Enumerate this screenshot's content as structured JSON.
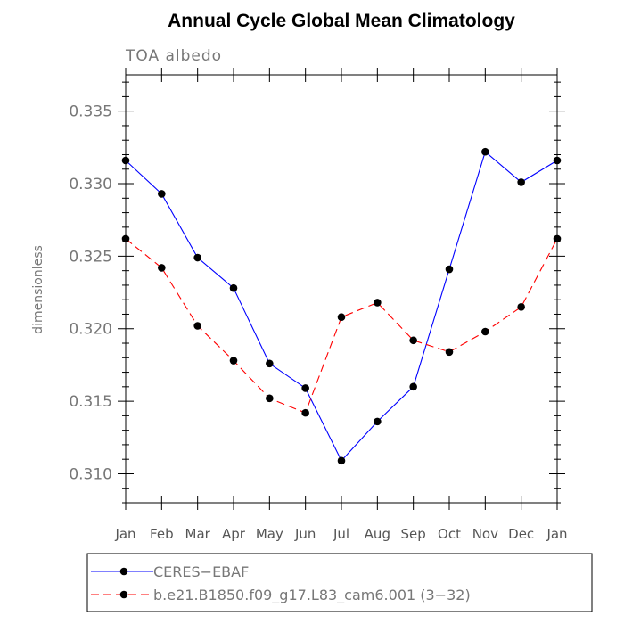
{
  "chart_data": {
    "type": "line",
    "title": "Annual Cycle Global Mean Climatology",
    "subtitle": "TOA albedo",
    "xlabel": "",
    "ylabel": "dimensionless",
    "categories": [
      "Jan",
      "Feb",
      "Mar",
      "Apr",
      "May",
      "Jun",
      "Jul",
      "Aug",
      "Sep",
      "Oct",
      "Nov",
      "Dec",
      "Jan"
    ],
    "ylim": [
      0.308,
      0.3375
    ],
    "yticks": [
      0.31,
      0.315,
      0.32,
      0.325,
      0.33,
      0.335
    ],
    "ytick_labels": [
      "0.310",
      "0.315",
      "0.320",
      "0.325",
      "0.330",
      "0.335"
    ],
    "minor_tick_step": 0.001,
    "legend_position": "bottom",
    "series": [
      {
        "name": "CERES−EBAF",
        "color": "#0000ff",
        "style": "solid",
        "values": [
          0.3316,
          0.3293,
          0.3249,
          0.3228,
          0.3176,
          0.3159,
          0.3109,
          0.3136,
          0.316,
          0.3241,
          0.3322,
          0.3301,
          0.3316
        ]
      },
      {
        "name": "b.e21.B1850.f09_g17.L83_cam6.001 (3−32)",
        "color": "#ff0000",
        "style": "dashed",
        "values": [
          0.3262,
          0.3242,
          0.3202,
          0.3178,
          0.3152,
          0.3142,
          0.3208,
          0.3218,
          0.3192,
          0.3184,
          0.3198,
          0.3215,
          0.3262
        ]
      }
    ]
  }
}
